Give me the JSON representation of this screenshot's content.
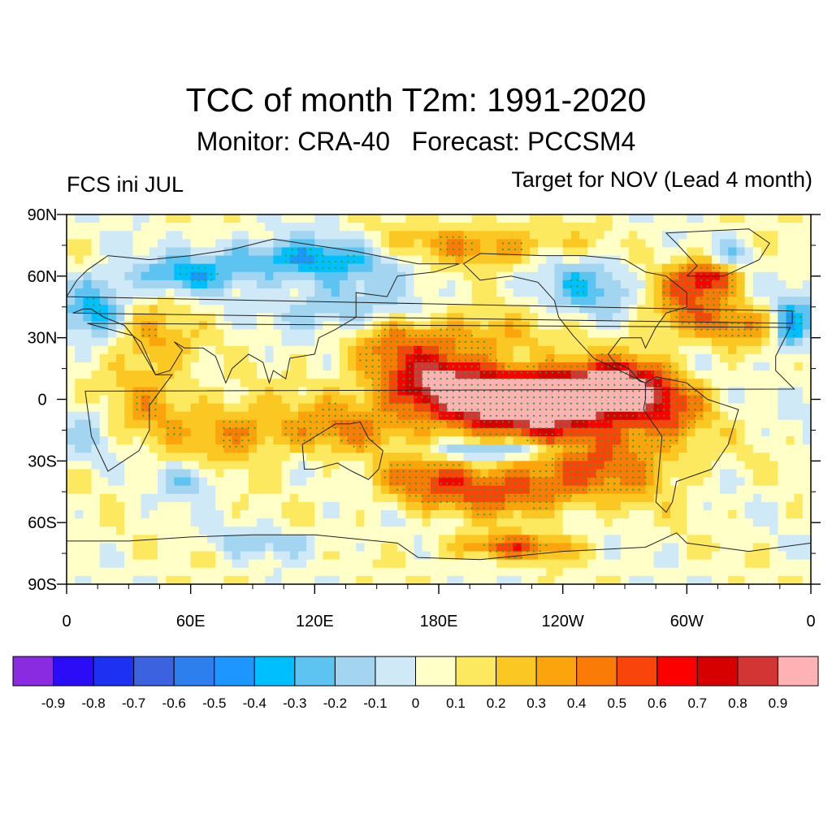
{
  "title": "TCC of month T2m: 1991-2020",
  "subtitle": "Monitor: CRA-40   Forecast: PCCSM4",
  "left_string": "FCS ini JUL",
  "right_string": "Target for NOV (Lead 4 month)",
  "map": {
    "projection": "cylindrical-equidistant",
    "lon_range": [
      0,
      360
    ],
    "lat_range": [
      -90,
      90
    ],
    "lat_ticks": [
      {
        "value": 90,
        "label": "90N"
      },
      {
        "value": 60,
        "label": "60N"
      },
      {
        "value": 30,
        "label": "30N"
      },
      {
        "value": 0,
        "label": "0"
      },
      {
        "value": -30,
        "label": "30S"
      },
      {
        "value": -60,
        "label": "60S"
      },
      {
        "value": -90,
        "label": "90S"
      }
    ],
    "lon_ticks": [
      {
        "value": 0,
        "label": "0"
      },
      {
        "value": 60,
        "label": "60E"
      },
      {
        "value": 120,
        "label": "120E"
      },
      {
        "value": 180,
        "label": "180E"
      },
      {
        "value": 240,
        "label": "120W"
      },
      {
        "value": 300,
        "label": "60W"
      },
      {
        "value": 360,
        "label": "0"
      }
    ],
    "stipple_color": "#2ca02c",
    "stipple_meaning": "significant"
  },
  "colorbar": {
    "colors": [
      "#8a2be2",
      "#2b0cf7",
      "#1c31f2",
      "#3d62e0",
      "#2e7fee",
      "#1e96ff",
      "#00bfff",
      "#5dc4f2",
      "#a3d5f0",
      "#cfe9f7",
      "#ffffc8",
      "#fde95f",
      "#fbc823",
      "#fba40c",
      "#fa7b05",
      "#f9450a",
      "#fc0000",
      "#d60000",
      "#d33434",
      "#ffb2b4"
    ],
    "labels": [
      "-0.9",
      "-0.8",
      "-0.7",
      "-0.6",
      "-0.5",
      "-0.4",
      "-0.3",
      "-0.2",
      "-0.1",
      "0",
      "0.1",
      "0.2",
      "0.3",
      "0.4",
      "0.5",
      "0.6",
      "0.7",
      "0.8",
      "0.9"
    ]
  },
  "field": {
    "description_values": "approximate TCC correlation anomaly blobs (lon deg E, lat deg, radius lon, radius lat, value)",
    "blobs": [
      [
        210,
        0,
        55,
        14,
        0.75
      ],
      [
        250,
        5,
        30,
        10,
        0.7
      ],
      [
        180,
        10,
        25,
        10,
        0.5
      ],
      [
        230,
        -5,
        40,
        12,
        0.55
      ],
      [
        270,
        10,
        20,
        12,
        0.45
      ],
      [
        160,
        25,
        25,
        15,
        0.35
      ],
      [
        200,
        30,
        30,
        12,
        0.3
      ],
      [
        260,
        -30,
        35,
        18,
        0.45
      ],
      [
        215,
        -45,
        30,
        12,
        0.45
      ],
      [
        175,
        -40,
        25,
        12,
        0.4
      ],
      [
        130,
        -15,
        35,
        12,
        0.3
      ],
      [
        80,
        -15,
        25,
        15,
        0.3
      ],
      [
        40,
        0,
        20,
        20,
        0.25
      ],
      [
        40,
        30,
        20,
        15,
        0.25
      ],
      [
        200,
        75,
        45,
        10,
        0.35
      ],
      [
        300,
        45,
        20,
        15,
        0.4
      ],
      [
        310,
        60,
        15,
        8,
        0.55
      ],
      [
        325,
        35,
        15,
        10,
        0.3
      ],
      [
        290,
        -5,
        20,
        15,
        0.35
      ],
      [
        215,
        -72,
        30,
        6,
        0.45
      ],
      [
        210,
        -25,
        35,
        4,
        -0.35
      ],
      [
        115,
        68,
        45,
        10,
        -0.45
      ],
      [
        135,
        45,
        30,
        12,
        -0.3
      ],
      [
        55,
        60,
        25,
        8,
        -0.35
      ],
      [
        15,
        45,
        15,
        15,
        -0.4
      ],
      [
        250,
        55,
        25,
        15,
        -0.3
      ],
      [
        350,
        35,
        8,
        15,
        -0.4
      ],
      [
        320,
        70,
        10,
        8,
        -0.2
      ],
      [
        60,
        -40,
        12,
        8,
        -0.25
      ],
      [
        100,
        -70,
        30,
        6,
        -0.2
      ],
      [
        10,
        -15,
        12,
        15,
        -0.15
      ]
    ]
  }
}
